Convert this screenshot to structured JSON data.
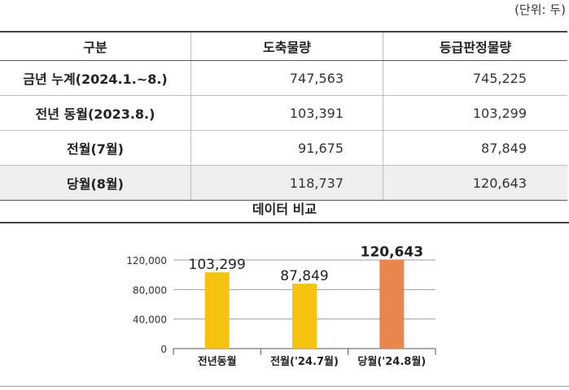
{
  "unit_note": "(단위: 두)",
  "table": {
    "headers": [
      "구분",
      "도축물량",
      "등급판정물량"
    ],
    "rows": [
      {
        "label": "금년 누계(2024.1.~8.)",
        "slaughter": "747,563",
        "graded": "745,225"
      },
      {
        "label": "전년 동월(2023.8.)",
        "slaughter": "103,391",
        "graded": "103,299"
      },
      {
        "label": "전월(7월)",
        "slaughter": "91,675",
        "graded": "87,849"
      },
      {
        "label": "당월(8월)",
        "slaughter": "118,737",
        "graded": "120,643"
      }
    ]
  },
  "chart_title": "데이터 비교",
  "chart_data": {
    "type": "bar",
    "categories": [
      "전년동월",
      "전월('24.7월)",
      "당월('24.8월)"
    ],
    "values": [
      103299,
      87849,
      120643
    ],
    "data_labels": [
      "103,299",
      "87,849",
      "120,643"
    ],
    "bar_colors": [
      "#f5c20f",
      "#f5c20f",
      "#e8864d"
    ],
    "ylim": [
      0,
      120000
    ],
    "yticks": [
      0,
      40000,
      80000,
      120000
    ],
    "ytick_labels": [
      "0",
      "40,000",
      "80,000",
      "120,000"
    ],
    "grid": true,
    "legend": "none"
  }
}
